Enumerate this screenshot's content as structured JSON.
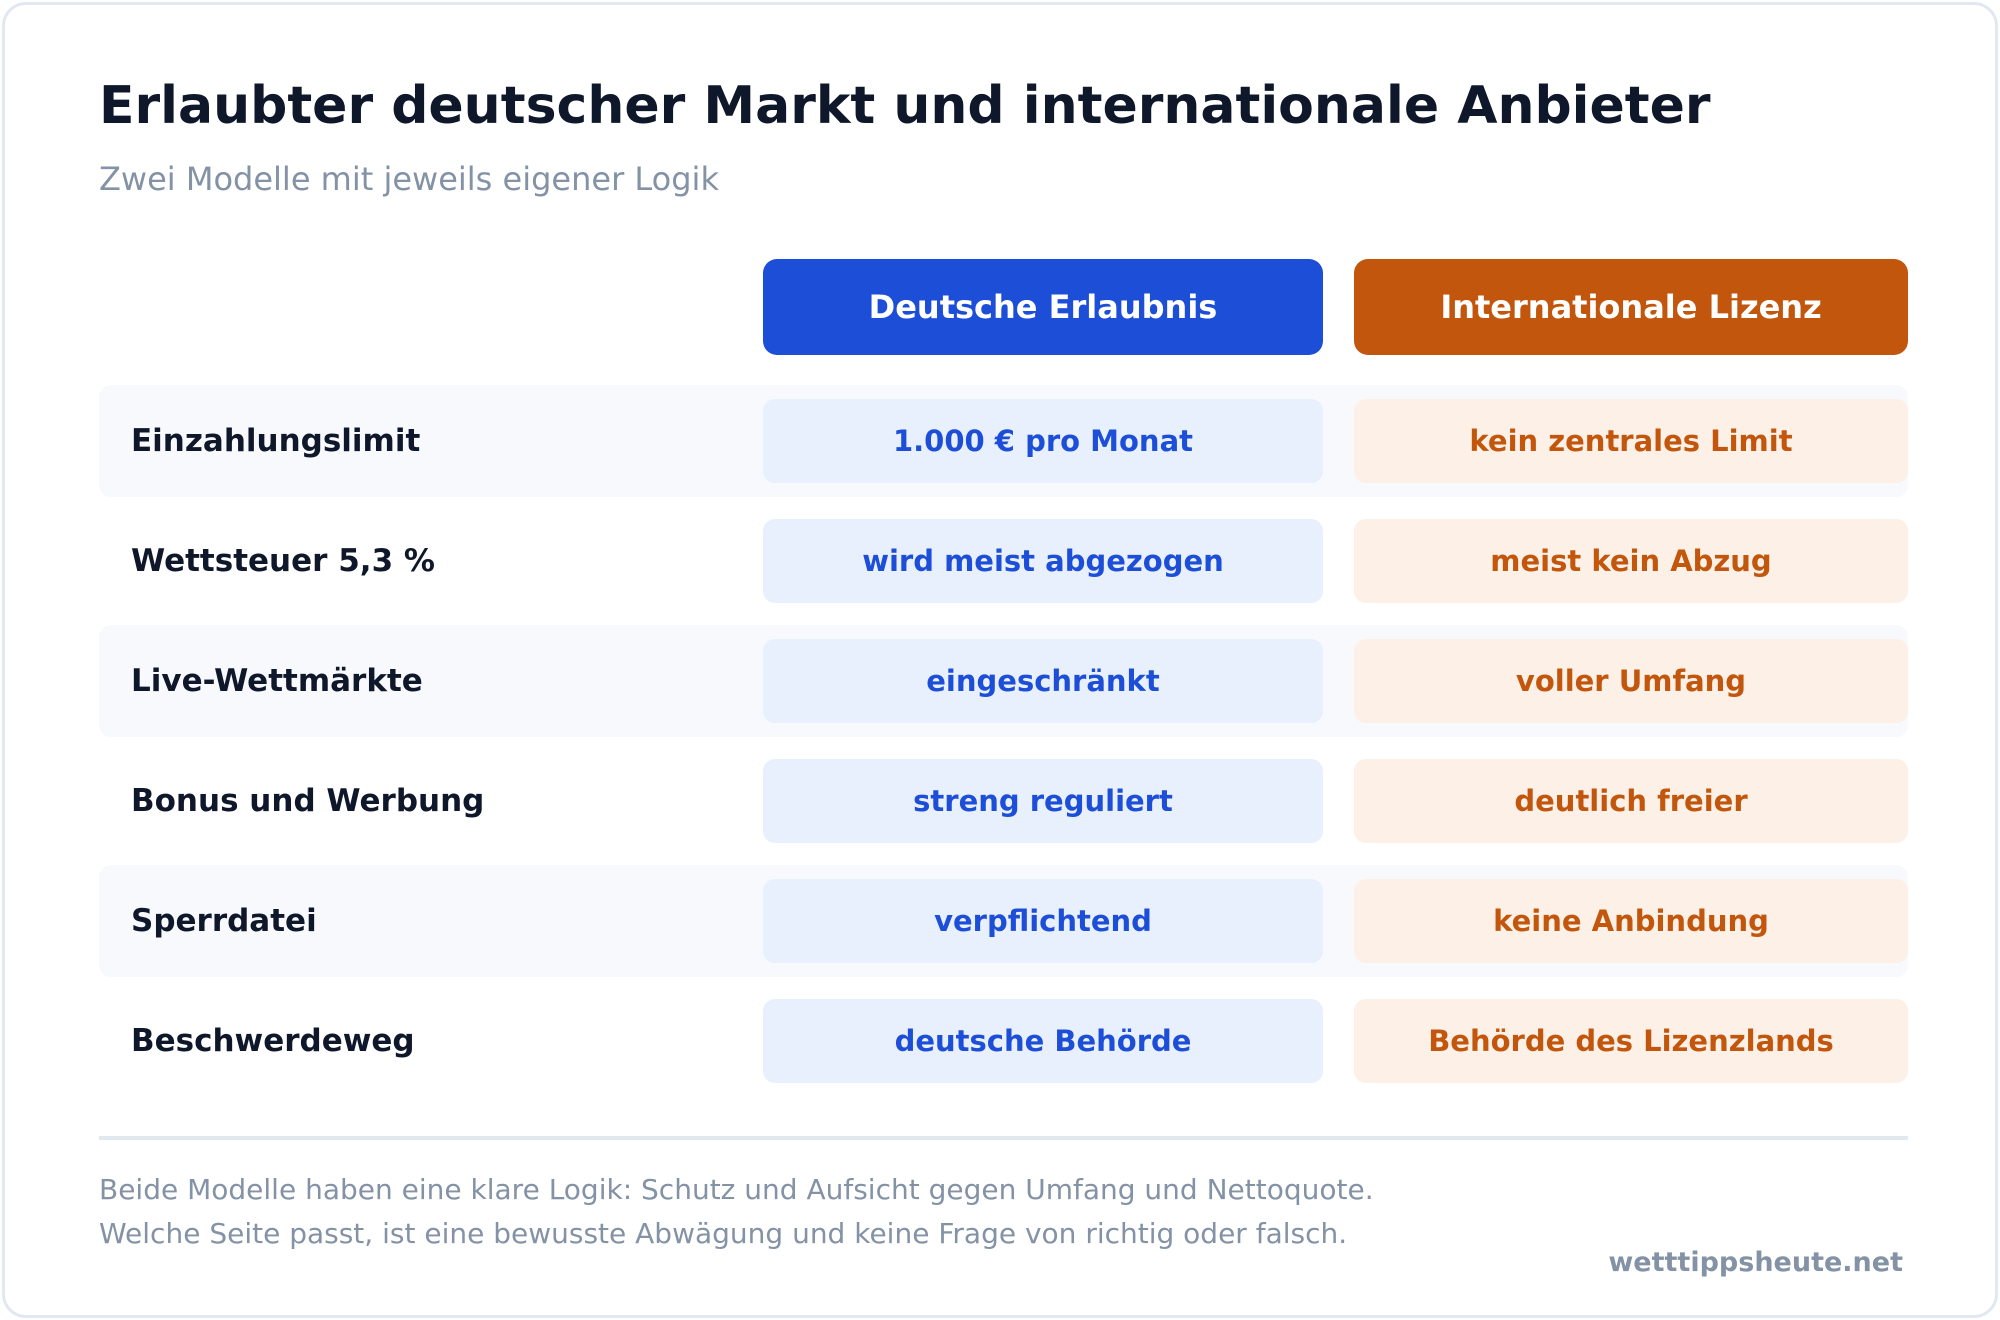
{
  "header": {
    "title": "Erlaubter deutscher Markt und internationale Anbieter",
    "subtitle": "Zwei Modelle mit jeweils eigener Logik"
  },
  "columns": {
    "de": "Deutsche Erlaubnis",
    "intl": "Internationale Lizenz"
  },
  "colors": {
    "de_accent": "#1d4ed8",
    "intl_accent": "#c2560c",
    "de_cell_bg": "#e8effd",
    "intl_cell_bg": "#fdf0e6"
  },
  "rows": [
    {
      "label": "Einzahlungslimit",
      "de": "1.000 € pro Monat",
      "intl": "kein zentrales Limit"
    },
    {
      "label": "Wettsteuer 5,3 %",
      "de": "wird meist abgezogen",
      "intl": "meist kein Abzug"
    },
    {
      "label": "Live-Wettmärkte",
      "de": "eingeschränkt",
      "intl": "voller Umfang"
    },
    {
      "label": "Bonus und Werbung",
      "de": "streng reguliert",
      "intl": "deutlich freier"
    },
    {
      "label": "Sperrdatei",
      "de": "verpflichtend",
      "intl": "keine Anbindung"
    },
    {
      "label": "Beschwerdeweg",
      "de": "deutsche Behörde",
      "intl": "Behörde des Lizenzlands"
    }
  ],
  "footer": {
    "line1": "Beide Modelle haben eine klare Logik: Schutz und Aufsicht gegen Umfang und Nettoquote.",
    "line2": "Welche Seite passt, ist eine bewusste Abwägung und keine Frage von richtig oder falsch.",
    "brand": "wetttippsheute.net"
  }
}
